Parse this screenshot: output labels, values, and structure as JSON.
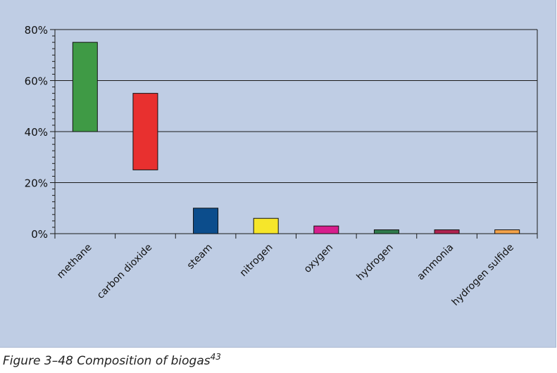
{
  "chart_data": {
    "type": "bar",
    "subtype": "floating-range",
    "categories": [
      "methane",
      "carbon dioxide",
      "steam",
      "nitrogen",
      "oxygen",
      "hydrogen",
      "ammonia",
      "hydrogen sulfide"
    ],
    "ranges": [
      {
        "low": 40,
        "high": 75,
        "color": "#3f9a45"
      },
      {
        "low": 25,
        "high": 55,
        "color": "#e8302f"
      },
      {
        "low": 0,
        "high": 10,
        "color": "#0c4d8c"
      },
      {
        "low": 0,
        "high": 6,
        "color": "#f6e62a"
      },
      {
        "low": 0,
        "high": 3,
        "color": "#d71e8c"
      },
      {
        "low": 0,
        "high": 1.5,
        "color": "#2f7a4c"
      },
      {
        "low": 0,
        "high": 1.5,
        "color": "#b02350"
      },
      {
        "low": 0,
        "high": 1.5,
        "color": "#f2a24a"
      }
    ],
    "ylim": [
      0,
      80
    ],
    "yticks": [
      0,
      20,
      40,
      60,
      80
    ],
    "ytick_labels": [
      "0%",
      "20%",
      "40%",
      "60%",
      "80%"
    ],
    "grid": true,
    "background_color": "#bfcde4"
  },
  "caption": {
    "text": "Figure 3–48  Composition of biogas",
    "superscript": "43"
  }
}
